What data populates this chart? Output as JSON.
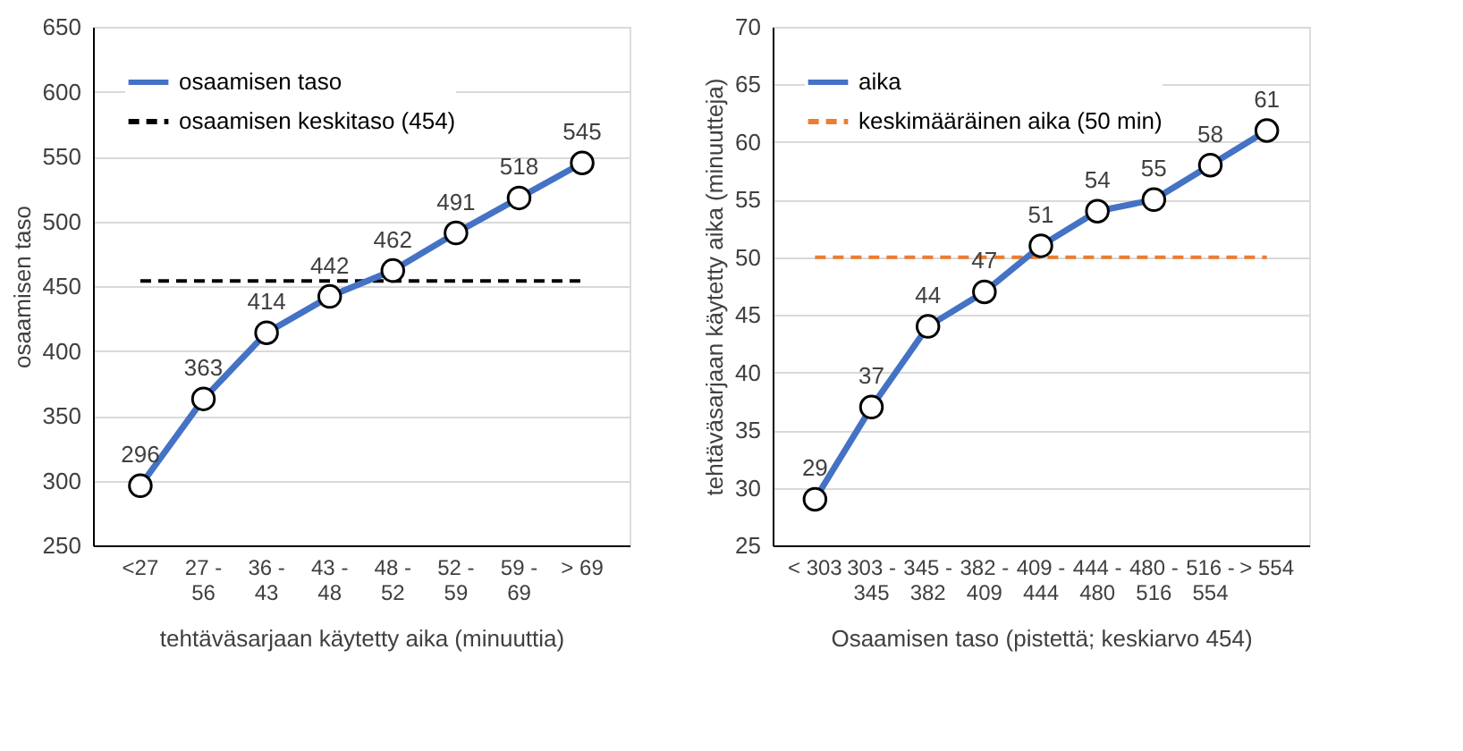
{
  "chart_data": [
    {
      "type": "line",
      "categories": [
        "<27",
        "27 - 56",
        "36 - 43",
        "43 - 48",
        "48 - 52",
        "52 - 59",
        "59 - 69",
        "> 69"
      ],
      "series": [
        {
          "name": "osaamisen taso",
          "color": "#4472c4",
          "values": [
            296,
            363,
            414,
            442,
            462,
            491,
            518,
            545
          ]
        }
      ],
      "ref_lines": [
        {
          "axis": "y",
          "value": 454,
          "label": "osaamisen keskitaso (454)",
          "color": "#000000",
          "line_style": "dashed"
        }
      ],
      "ylim": [
        250,
        650
      ],
      "yticks": [
        250,
        300,
        350,
        400,
        450,
        500,
        550,
        600,
        650
      ],
      "xlabel": "tehtäväsarjaan  käytetty aika (minuuttia)",
      "ylabel": "osaamisen taso",
      "grid": "y",
      "legend": "top left",
      "marker": "circle",
      "line_style": "solid",
      "data_labels": true
    },
    {
      "type": "line",
      "categories": [
        "< 303",
        "303 - 345",
        "345 - 382",
        "382 - 409",
        "409 - 444",
        "444 - 480",
        "480 - 516",
        "516 - 554",
        "> 554"
      ],
      "series": [
        {
          "name": "aika",
          "color": "#4472c4",
          "values": [
            29,
            37,
            44,
            47,
            51,
            54,
            55,
            58,
            61
          ]
        }
      ],
      "ref_lines": [
        {
          "axis": "y",
          "value": 50,
          "label": "keskimääräinen aika (50 min)",
          "color": "#ed7d31",
          "line_style": "dashed"
        }
      ],
      "ylim": [
        25,
        70
      ],
      "yticks": [
        25,
        30,
        35,
        40,
        45,
        50,
        55,
        60,
        65,
        70
      ],
      "xlabel": "Osaamisen taso (pistettä; keskiarvo 454)",
      "ylabel": "tehtäväsarjaan käytetty aika (minuutteja)",
      "grid": "y",
      "legend": "top left",
      "marker": "circle",
      "line_style": "solid",
      "data_labels": true
    }
  ]
}
